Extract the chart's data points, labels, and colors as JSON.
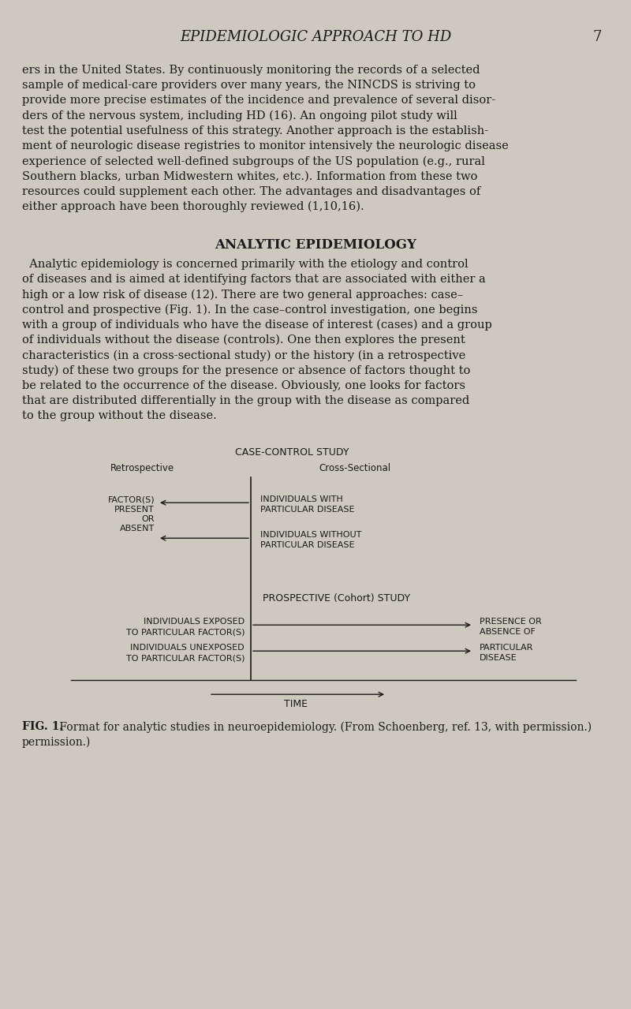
{
  "bg_color": "#cdc9be",
  "text_color": "#1a1a1a",
  "page_title": "EPIDEMIOLOGIC APPROACH TO HD",
  "page_number": "7",
  "section_title": "ANALYTIC EPIDEMIOLOGY",
  "diagram_title": "CASE-CONTROL STUDY",
  "retro_label": "Retrospective",
  "cross_label": "Cross-Sectional",
  "prospective_label": "PROSPECTIVE (Cohort) STUDY",
  "time_label": "TIME",
  "fig_caption_bold": "FIG. 1.",
  "fig_caption_rest": " Format for analytic studies in neuroepidemiology. (From Schoenberg, ref. 13, with permission.)"
}
